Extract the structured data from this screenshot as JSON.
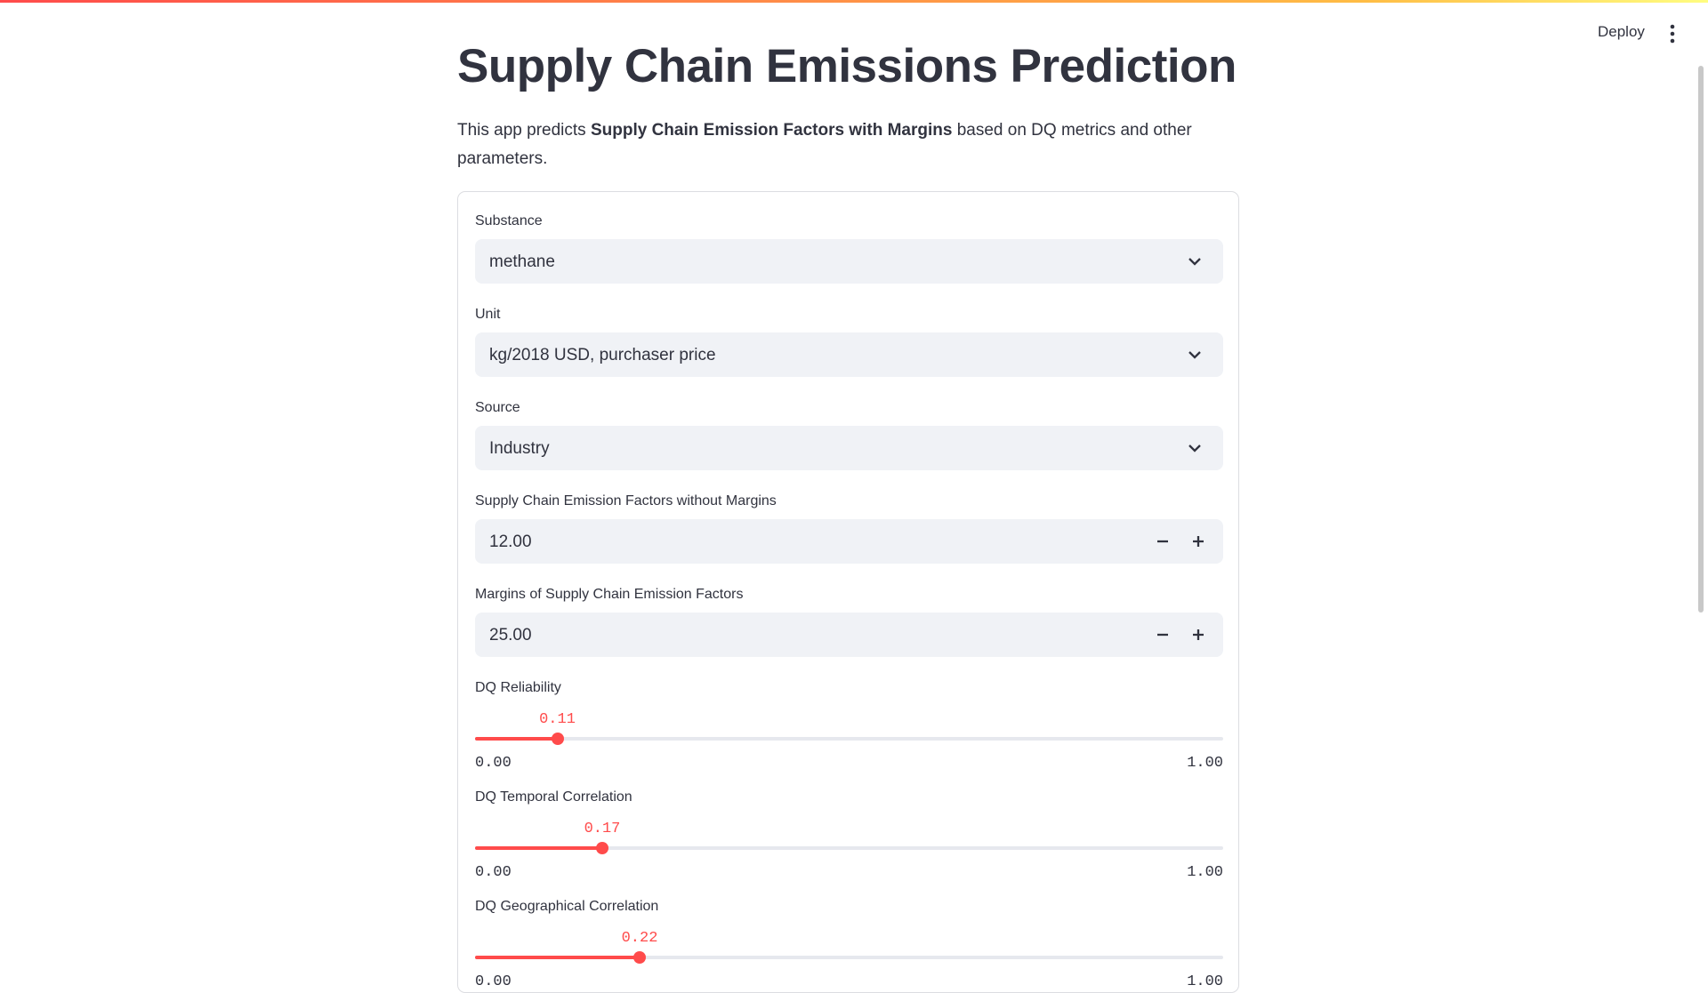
{
  "header": {
    "deploy": "Deploy"
  },
  "title": "Supply Chain Emissions Prediction",
  "description": {
    "before": "This app predicts ",
    "bold": "Supply Chain Emission Factors with Margins",
    "after": " based on DQ metrics and other parameters."
  },
  "fields": [
    {
      "kind": "select",
      "label": "Substance",
      "value": "methane"
    },
    {
      "kind": "select",
      "label": "Unit",
      "value": "kg/2018 USD, purchaser price"
    },
    {
      "kind": "select",
      "label": "Source",
      "value": "Industry"
    },
    {
      "kind": "number",
      "label": "Supply Chain Emission Factors without Margins",
      "value": "12.00"
    },
    {
      "kind": "number",
      "label": "Margins of Supply Chain Emission Factors",
      "value": "25.00"
    },
    {
      "kind": "slider",
      "label": "DQ Reliability",
      "value": {
        "value": 0.11,
        "label": "0.11"
      },
      "min": {
        "value": 0,
        "label": "0.00"
      },
      "max": {
        "value": 1,
        "label": "1.00"
      }
    },
    {
      "kind": "slider",
      "label": "DQ Temporal Correlation",
      "value": {
        "value": 0.17,
        "label": "0.17"
      },
      "min": {
        "value": 0,
        "label": "0.00"
      },
      "max": {
        "value": 1,
        "label": "1.00"
      }
    },
    {
      "kind": "slider",
      "label": "DQ Geographical Correlation",
      "value": {
        "value": 0.22,
        "label": "0.22"
      },
      "min": {
        "value": 0,
        "label": "0.00"
      },
      "max": {
        "value": 1,
        "label": "1.00"
      }
    }
  ]
}
